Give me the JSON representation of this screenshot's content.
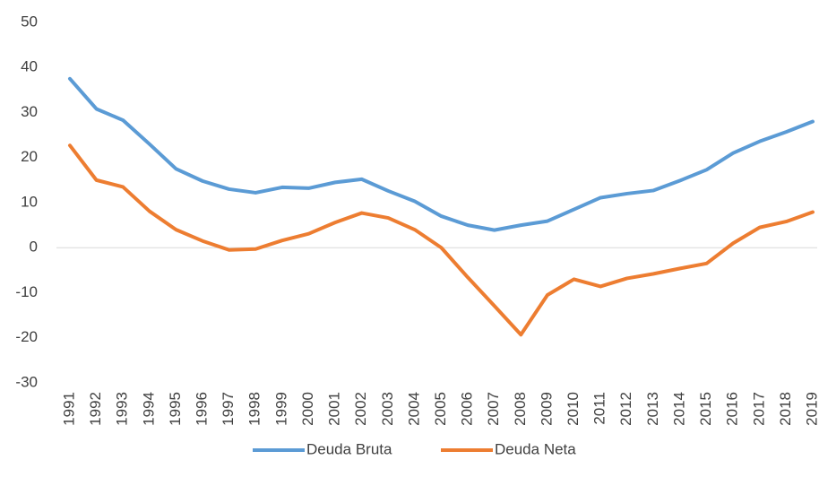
{
  "chart_data": {
    "type": "line",
    "categories": [
      "1991",
      "1992",
      "1993",
      "1994",
      "1995",
      "1996",
      "1997",
      "1998",
      "1999",
      "2000",
      "2001",
      "2002",
      "2003",
      "2004",
      "2005",
      "2006",
      "2007",
      "2008",
      "2009",
      "2010",
      "2011",
      "2012",
      "2013",
      "2014",
      "2015",
      "2016",
      "2017",
      "2018",
      "2019"
    ],
    "series": [
      {
        "name": "Deuda Bruta",
        "color": "#5b9bd5",
        "values": [
          37.5,
          30.8,
          28.3,
          23,
          17.5,
          14.8,
          13,
          12.2,
          13.4,
          13.2,
          14.5,
          15.2,
          12.6,
          10.3,
          7,
          5,
          3.9,
          5,
          5.9,
          8.5,
          11.1,
          12,
          12.7,
          14.9,
          17.3,
          21,
          23.6,
          25.7,
          28
        ]
      },
      {
        "name": "Deuda Neta",
        "color": "#ed7d31",
        "values": [
          22.7,
          15,
          13.5,
          8.1,
          4,
          1.5,
          -0.5,
          -0.3,
          1.6,
          3.1,
          5.6,
          7.7,
          6.6,
          4,
          0,
          -6.6,
          -12.9,
          -19.3,
          -10.5,
          -7,
          -8.6,
          -6.8,
          -5.8,
          -4.6,
          -3.5,
          1,
          4.5,
          5.8,
          7.9
        ]
      }
    ],
    "ylim": [
      -30,
      50
    ],
    "yticks": [
      -30,
      -20,
      -10,
      0,
      10,
      20,
      30,
      40,
      50
    ],
    "legend": "bottom"
  }
}
